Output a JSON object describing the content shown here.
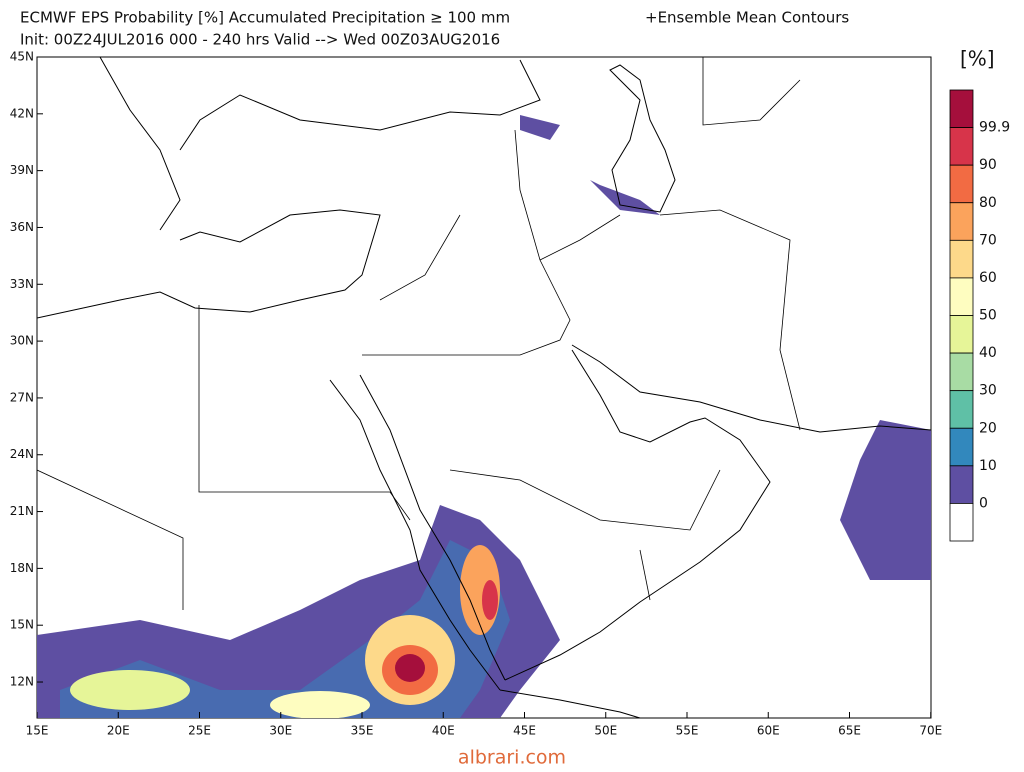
{
  "header": {
    "title": "ECMWF EPS Probability [%] Accumulated Precipitation ≥ 100 mm",
    "title_extra": "+Ensemble Mean Contours",
    "subtitle": "Init: 00Z24JUL2016   000 - 240 hrs Valid --> Wed 00Z03AUG2016"
  },
  "map": {
    "lat_labels": [
      "45N",
      "42N",
      "39N",
      "36N",
      "33N",
      "30N",
      "27N",
      "24N",
      "21N",
      "18N",
      "15N",
      "12N"
    ],
    "lon_labels": [
      "15E",
      "20E",
      "25E",
      "30E",
      "35E",
      "40E",
      "45E",
      "50E",
      "55E",
      "60E",
      "65E",
      "70E"
    ]
  },
  "colorbar": {
    "unit": "[%]",
    "labels": [
      "99.9",
      "90",
      "80",
      "70",
      "60",
      "50",
      "40",
      "30",
      "20",
      "10",
      "0"
    ],
    "colors": [
      "#a50f3c",
      "#d7344a",
      "#f26b43",
      "#fba35c",
      "#fdd98a",
      "#fefdc0",
      "#e6f598",
      "#a8dca4",
      "#5fc0a6",
      "#3288bd",
      "#5e4fa2",
      "#ffffff"
    ]
  },
  "watermark": "albrari.com"
}
